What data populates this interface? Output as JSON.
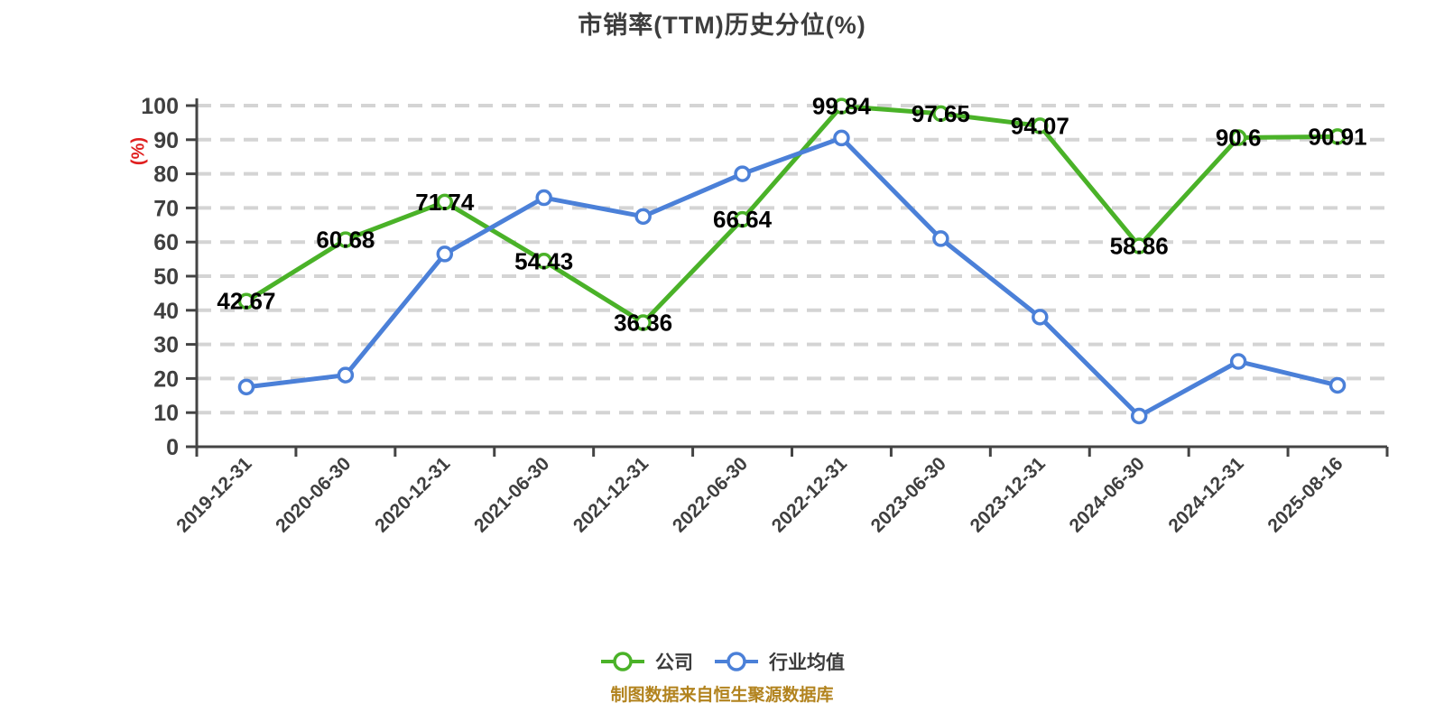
{
  "chart_data": {
    "type": "line",
    "title": "市销率(TTM)历史分位(%)",
    "ylabel": "(%)",
    "xlabel": "",
    "ylim": [
      0,
      100
    ],
    "yticks": [
      0,
      10,
      20,
      30,
      40,
      50,
      60,
      70,
      80,
      90,
      100
    ],
    "grid": "horizontal dashed gridlines",
    "legend_position": "bottom",
    "categories": [
      "2019-12-31",
      "2020-06-30",
      "2020-12-31",
      "2021-06-30",
      "2021-12-31",
      "2022-06-30",
      "2022-12-31",
      "2023-06-30",
      "2023-12-31",
      "2024-06-30",
      "2024-12-31",
      "2025-08-16"
    ],
    "series": [
      {
        "name": "公司",
        "color": "#4ab228",
        "show_point_labels": true,
        "values": [
          42.67,
          60.68,
          71.74,
          54.43,
          36.36,
          66.64,
          99.84,
          97.65,
          94.07,
          58.86,
          90.6,
          90.91
        ]
      },
      {
        "name": "行业均值",
        "color": "#4b80d8",
        "show_point_labels": false,
        "values": [
          17.5,
          21,
          56.5,
          73,
          67.5,
          80,
          90.5,
          61,
          38,
          9,
          25,
          18
        ]
      }
    ],
    "colors": {
      "grid": "#d4d4d4",
      "axis": "#444444",
      "tick_label": "#3f3f3f",
      "data_label": "#000000",
      "ylabel": "#e01f1f",
      "marker_fill": "#ffffff"
    }
  },
  "footer": {
    "text": "制图数据来自恒生聚源数据库",
    "color": "#b2831e"
  }
}
